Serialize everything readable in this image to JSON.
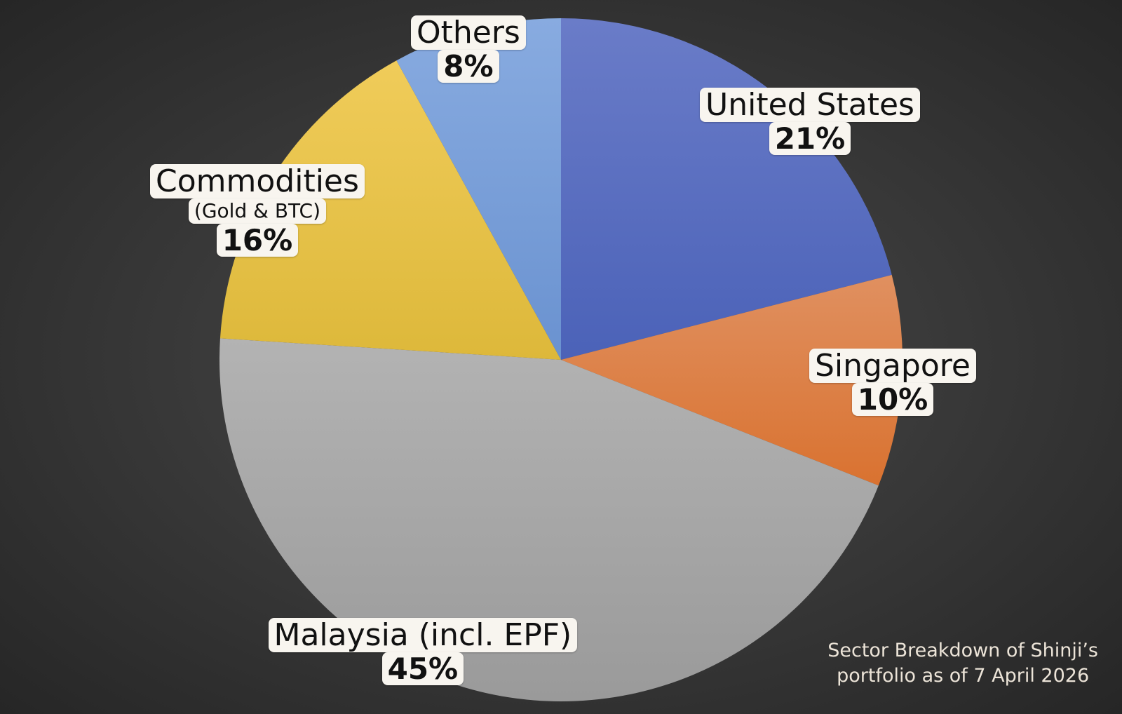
{
  "chart_data": {
    "type": "pie",
    "slices": [
      {
        "label": "United States",
        "sublabel": "",
        "value": 21,
        "value_label": "21%",
        "color_top": "#6a7cc8",
        "color_bottom": "#4b62b8"
      },
      {
        "label": "Singapore",
        "sublabel": "",
        "value": 10,
        "value_label": "10%",
        "color_top": "#e09060",
        "color_bottom": "#d97230"
      },
      {
        "label": "Malaysia (incl. EPF)",
        "sublabel": "",
        "value": 45,
        "value_label": "45%",
        "color_top": "#b3b3b3",
        "color_bottom": "#9a9a9a"
      },
      {
        "label": "Commodities",
        "sublabel": "(Gold & BTC)",
        "value": 16,
        "value_label": "16%",
        "color_top": "#f0cc5a",
        "color_bottom": "#ddb83a"
      },
      {
        "label": "Others",
        "sublabel": "",
        "value": 8,
        "value_label": "8%",
        "color_top": "#88abe0",
        "color_bottom": "#6a92d0"
      }
    ],
    "start_angle": "12 o'clock",
    "direction": "clockwise",
    "legend": "none"
  },
  "caption": {
    "line1": "Sector Breakdown of Shinji’s",
    "line2": "portfolio as of 7 April 2026"
  }
}
